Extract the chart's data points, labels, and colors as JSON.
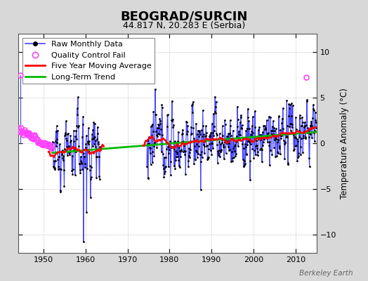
{
  "title": "BEOGRAD/SURCIN",
  "subtitle": "44.817 N, 20.283 E (Serbia)",
  "ylabel": "Temperature Anomaly (°C)",
  "watermark": "Berkeley Earth",
  "start_year": 1944,
  "end_year": 2015,
  "xlim": [
    1944,
    2015
  ],
  "ylim": [
    -12,
    12
  ],
  "yticks": [
    -10,
    -5,
    0,
    5,
    10
  ],
  "xticks": [
    1950,
    1960,
    1970,
    1980,
    1990,
    2000,
    2010
  ],
  "bg_color": "#d8d8d8",
  "plot_bg_color": "#ffffff",
  "raw_line_color": "#4444ff",
  "raw_dot_color": "#000000",
  "qc_fail_color": "#ff44ff",
  "moving_avg_color": "#ff0000",
  "trend_color": "#00bb00",
  "legend_fontsize": 8,
  "title_fontsize": 13,
  "subtitle_fontsize": 9,
  "seed": 12345,
  "gap_start": 1963.5,
  "gap_end": 1974.5,
  "data_start": 1955.0,
  "qc_fail_start": 1944.0,
  "qc_fail_end": 1952.0,
  "qc_fail_2013": 2012.5
}
